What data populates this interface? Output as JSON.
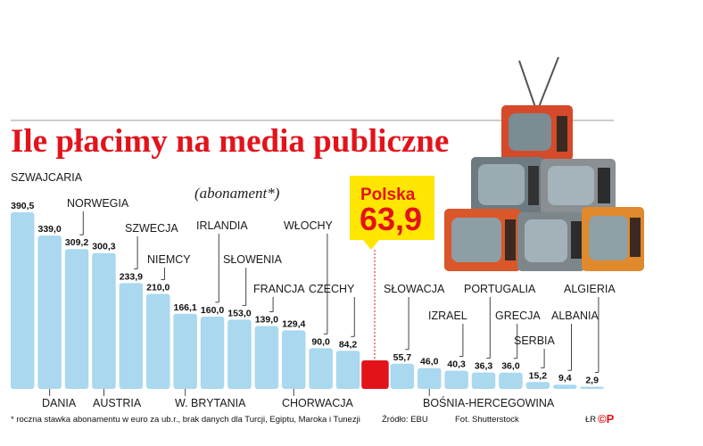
{
  "chart_data": {
    "type": "bar",
    "title": "Ile płacimy na media publiczne",
    "subtitle": "(abonament*)",
    "categories": [
      "SZWAJCARIA",
      "DANIA",
      "NORWEGIA",
      "AUSTRIA",
      "SZWECJA",
      "NIEMCY",
      "W. BRYTANIA",
      "IRLANDIA",
      "SŁOWENIA",
      "FRANCJA",
      "CHORWACJA",
      "WŁOCHY",
      "CZECHY",
      "Polska",
      "SŁOWACJA",
      "BOŚNIA-HERCEGOWINA",
      "IZRAEL",
      "PORTUGALIA",
      "GRECJA",
      "SERBIA",
      "ALBANIA",
      "ALGIERIA"
    ],
    "values": [
      390.5,
      339.0,
      309.2,
      300.3,
      233.9,
      210.0,
      166.1,
      160.0,
      153.0,
      139.0,
      129.4,
      90.0,
      84.2,
      63.9,
      55.7,
      46.0,
      40.3,
      36.3,
      36.0,
      15.2,
      9.4,
      2.9
    ],
    "value_labels": [
      "390,5",
      "339,0",
      "309,2",
      "300,3",
      "233,9",
      "210,0",
      "166,1",
      "160,0",
      "153,0",
      "139,0",
      "129,4",
      "90,0",
      "84,2",
      "63,9",
      "55,7",
      "46,0",
      "40,3",
      "36,3",
      "36,0",
      "15,2",
      "9,4",
      "2,9"
    ],
    "highlight": {
      "category": "Polska",
      "value_label": "63,9",
      "color": "#e3131b"
    },
    "bar_color": "#a9d8ef",
    "ylim": [
      0,
      400
    ]
  },
  "footnote": "* roczna stawka abonamentu w euro za ub.r., brak danych dla Turcji, Egiptu, Maroka i Tunezji",
  "source": "Źródło: EBU",
  "photo_credit": "Fot. Shutterstock",
  "author_initials": "ŁR",
  "logo_text": "©P",
  "image_icon": "retro-tv-stack-icon"
}
